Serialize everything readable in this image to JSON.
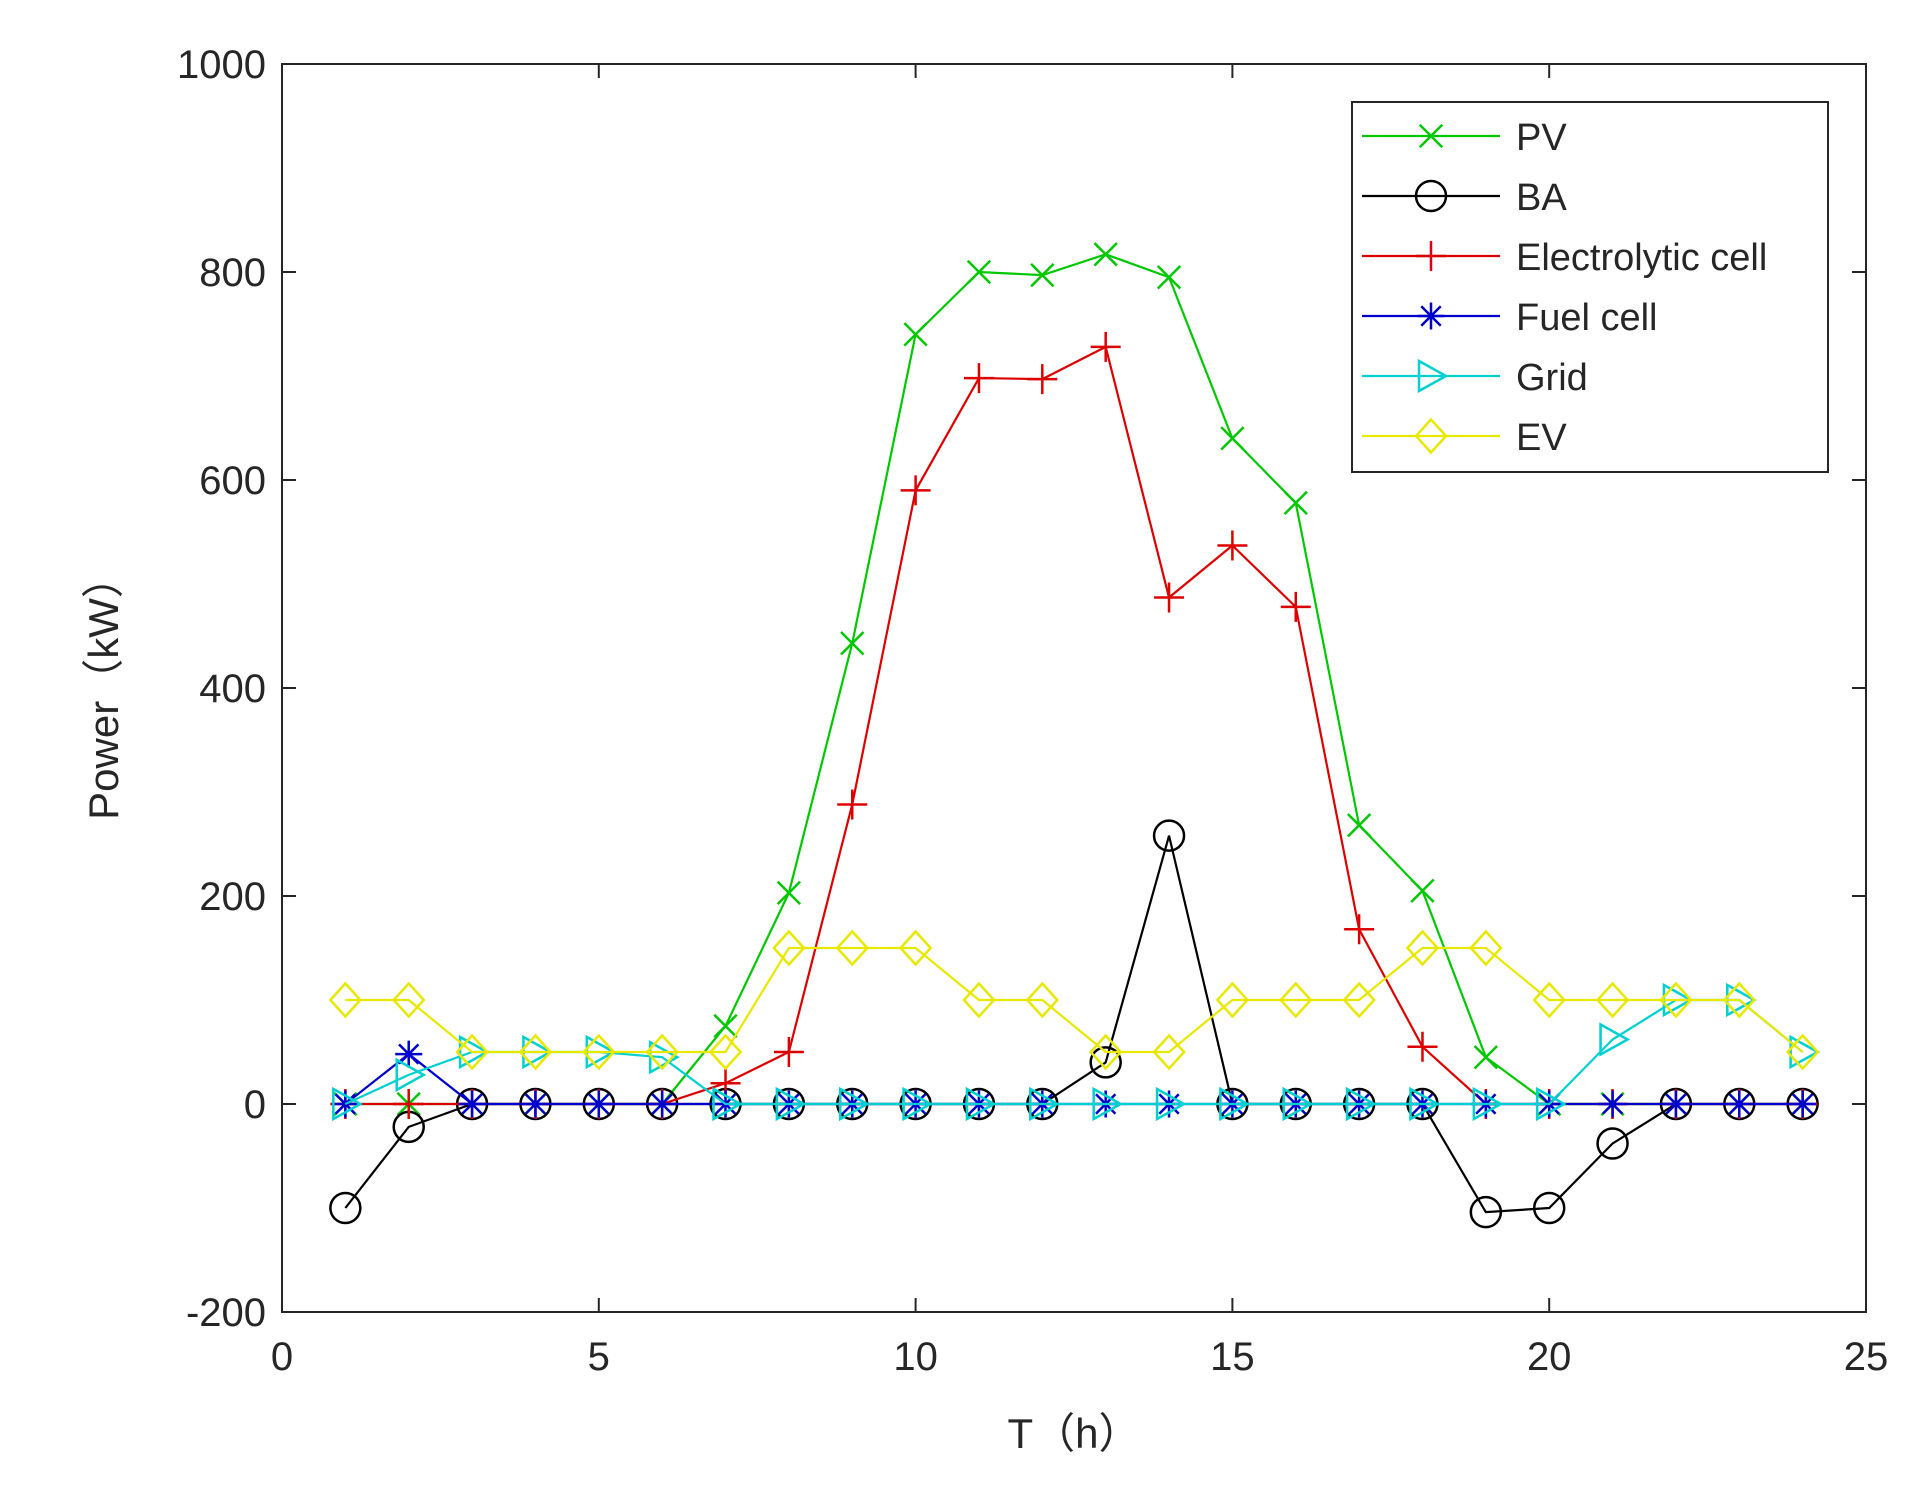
{
  "chart_data": {
    "type": "line",
    "title": "",
    "xlabel": "T（h）",
    "ylabel": "Power（kW）",
    "xlim": [
      0,
      25
    ],
    "ylim": [
      -200,
      1000
    ],
    "xticks": [
      0,
      5,
      10,
      15,
      20,
      25
    ],
    "yticks": [
      -200,
      0,
      200,
      400,
      600,
      800,
      1000
    ],
    "grid": false,
    "legend_position": "top-right",
    "x": [
      1,
      2,
      3,
      4,
      5,
      6,
      7,
      8,
      9,
      10,
      11,
      12,
      13,
      14,
      15,
      16,
      17,
      18,
      19,
      20,
      21,
      22,
      23,
      24
    ],
    "series": [
      {
        "name": "PV",
        "color": "#00c800",
        "marker": "x",
        "values": [
          0,
          0,
          0,
          0,
          0,
          0,
          75,
          203,
          443,
          740,
          800,
          797,
          817,
          795,
          640,
          578,
          268,
          205,
          45,
          0,
          0,
          0,
          0,
          0
        ]
      },
      {
        "name": "BA",
        "color": "#000000",
        "marker": "o",
        "values": [
          -100,
          -22,
          0,
          0,
          0,
          0,
          0,
          0,
          0,
          0,
          0,
          0,
          40,
          258,
          0,
          0,
          0,
          0,
          -104,
          -100,
          -38,
          0,
          0,
          0
        ]
      },
      {
        "name": "Electrolytic cell",
        "color": "#dd0000",
        "marker": "+",
        "values": [
          0,
          0,
          0,
          0,
          0,
          0,
          20,
          50,
          288,
          590,
          698,
          697,
          728,
          487,
          537,
          478,
          168,
          55,
          0,
          0,
          0,
          0,
          0,
          0
        ]
      },
      {
        "name": "Fuel cell",
        "color": "#0000cc",
        "marker": "*",
        "values": [
          0,
          48,
          0,
          0,
          0,
          0,
          0,
          0,
          0,
          0,
          0,
          0,
          0,
          0,
          0,
          0,
          0,
          0,
          0,
          0,
          0,
          0,
          0,
          0
        ]
      },
      {
        "name": "Grid",
        "color": "#00d0d0",
        "marker": "triangle-right",
        "values": [
          0,
          28,
          50,
          50,
          50,
          45,
          0,
          0,
          0,
          0,
          0,
          0,
          0,
          0,
          0,
          0,
          0,
          0,
          0,
          0,
          62,
          100,
          100,
          50
        ]
      },
      {
        "name": "EV",
        "color": "#e8e800",
        "marker": "diamond",
        "values": [
          100,
          100,
          50,
          50,
          50,
          50,
          50,
          150,
          150,
          150,
          100,
          100,
          50,
          50,
          100,
          100,
          100,
          150,
          150,
          100,
          100,
          100,
          100,
          50
        ]
      }
    ]
  }
}
